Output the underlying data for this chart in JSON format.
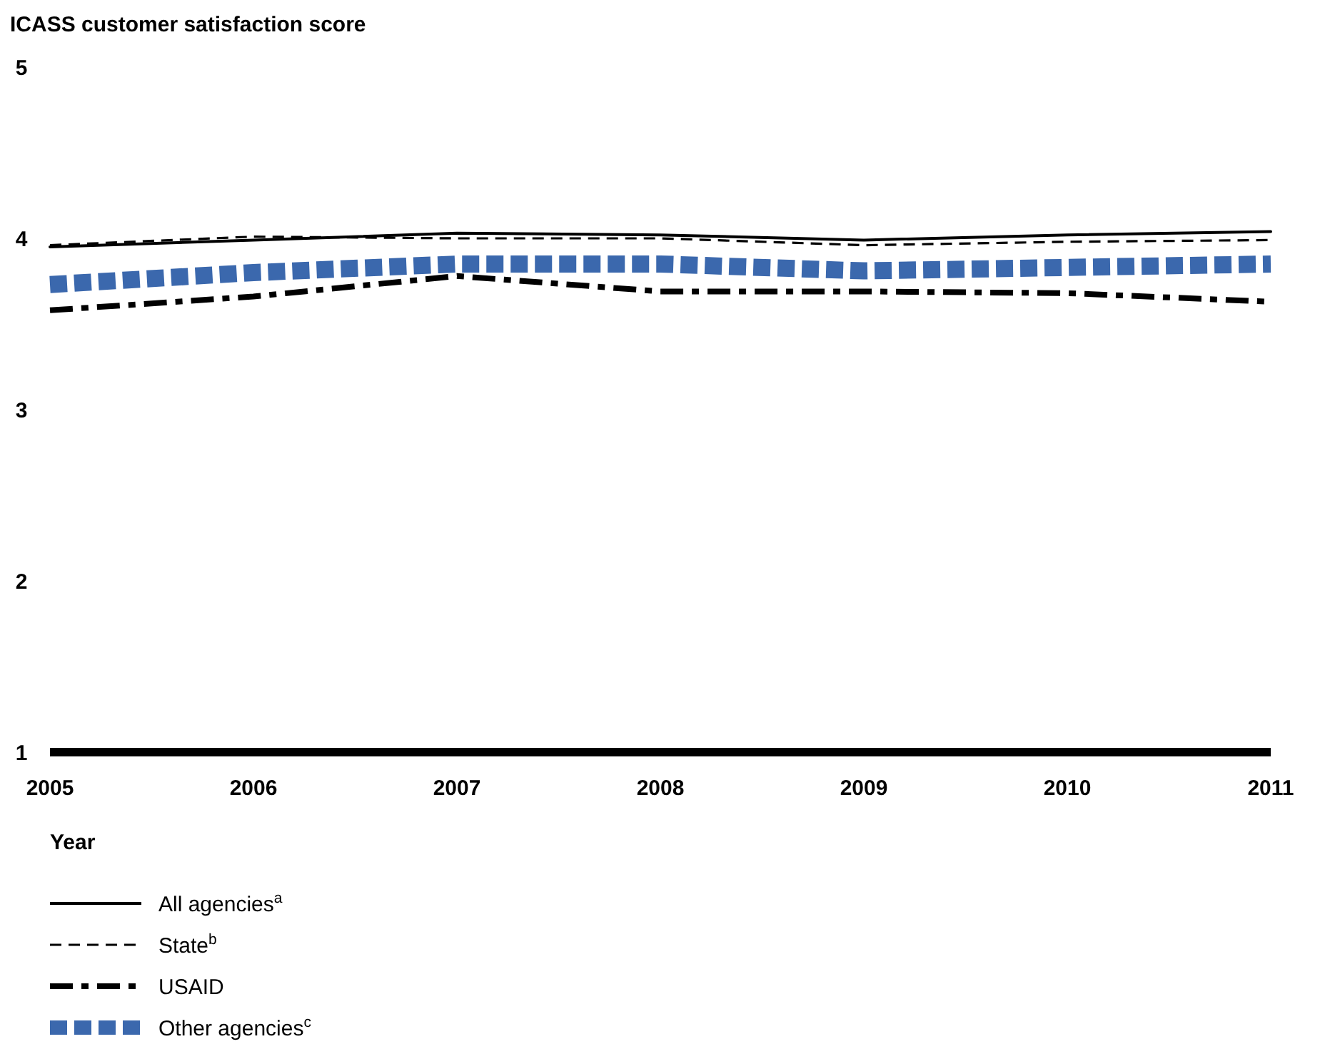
{
  "chart_data": {
    "type": "line",
    "ylabel": "ICASS customer satisfaction score",
    "xlabel": "Year",
    "x": [
      2005,
      2006,
      2007,
      2008,
      2009,
      2010,
      2011
    ],
    "xlim": [
      2005,
      2011
    ],
    "xticks": [
      2005,
      2006,
      2007,
      2008,
      2009,
      2010,
      2011
    ],
    "ylim": [
      1,
      5
    ],
    "yticks": [
      1,
      2,
      3,
      4,
      5
    ],
    "grid": false,
    "legend": "bottom left",
    "series": [
      {
        "name": "All agencies$^{a}$",
        "color": "#000000",
        "line_style": "solid",
        "values": [
          3.95,
          3.99,
          4.03,
          4.02,
          3.99,
          4.02,
          4.04
        ]
      },
      {
        "name": "State$^{b}$",
        "color": "#000000",
        "line_style": "dashed",
        "values": [
          3.96,
          4.01,
          4.0,
          4.0,
          3.96,
          3.98,
          3.99
        ]
      },
      {
        "name": "USAID",
        "color": "#000000",
        "line_style": "dashdot",
        "values": [
          3.58,
          3.66,
          3.78,
          3.69,
          3.69,
          3.68,
          3.63
        ]
      },
      {
        "name": "Other agencies$^{c}$",
        "color": "#3b68ad",
        "line_style": "dotted",
        "values": [
          3.73,
          3.8,
          3.85,
          3.85,
          3.81,
          3.83,
          3.85
        ]
      }
    ]
  }
}
